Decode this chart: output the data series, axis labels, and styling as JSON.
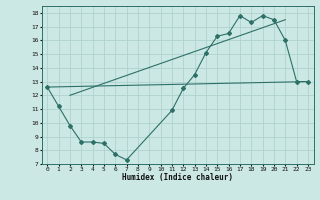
{
  "title": "",
  "xlabel": "Humidex (Indice chaleur)",
  "bg_color": "#cce8e4",
  "grid_color": "#aacfcb",
  "line_color": "#2d7068",
  "xlim": [
    -0.5,
    23.5
  ],
  "ylim": [
    7,
    18.5
  ],
  "xticks": [
    0,
    1,
    2,
    3,
    4,
    5,
    6,
    7,
    8,
    9,
    10,
    11,
    12,
    13,
    14,
    15,
    16,
    17,
    18,
    19,
    20,
    21,
    22,
    23
  ],
  "yticks": [
    7,
    8,
    9,
    10,
    11,
    12,
    13,
    14,
    15,
    16,
    17,
    18
  ],
  "line1_x": [
    0,
    1,
    2,
    3,
    4,
    5,
    6,
    7,
    11,
    12,
    13,
    14,
    15,
    16,
    17,
    18,
    19,
    20,
    21,
    22,
    23
  ],
  "line1_y": [
    12.6,
    11.2,
    9.8,
    8.6,
    8.6,
    8.5,
    7.7,
    7.3,
    10.9,
    12.5,
    13.5,
    15.1,
    16.3,
    16.5,
    17.8,
    17.3,
    17.8,
    17.5,
    16.0,
    13.0,
    13.0
  ],
  "line2_x": [
    0,
    23
  ],
  "line2_y": [
    12.6,
    13.0
  ],
  "line3_x": [
    2,
    21
  ],
  "line3_y": [
    12.0,
    17.5
  ],
  "xlabel_fontsize": 5.5,
  "tick_fontsize": 4.5,
  "lw": 0.8,
  "marker_size": 2.0
}
